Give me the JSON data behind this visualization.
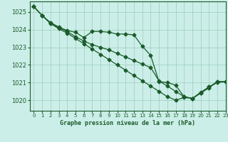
{
  "title": "Graphe pression niveau de la mer (hPa)",
  "bg_color": "#cceee8",
  "grid_color": "#99ccbb",
  "line_color": "#1a5c2a",
  "xlim": [
    -0.5,
    23
  ],
  "ylim": [
    1019.4,
    1025.6
  ],
  "yticks": [
    1020,
    1021,
    1022,
    1023,
    1024,
    1025
  ],
  "xticks": [
    0,
    1,
    2,
    3,
    4,
    5,
    6,
    7,
    8,
    9,
    10,
    11,
    12,
    13,
    14,
    15,
    16,
    17,
    18,
    19,
    20,
    21,
    22,
    23
  ],
  "series1_x": [
    0,
    1,
    2,
    3,
    4,
    5,
    6,
    7,
    8,
    9,
    10,
    11,
    12,
    13,
    14,
    15,
    16,
    17,
    18,
    19,
    20,
    21,
    22,
    23
  ],
  "series1_y": [
    1025.3,
    1024.8,
    1024.4,
    1024.15,
    1023.95,
    1023.85,
    1023.55,
    1023.9,
    1023.9,
    1023.85,
    1023.75,
    1023.75,
    1023.7,
    1023.05,
    1022.55,
    1021.05,
    1021.0,
    1020.85,
    1020.2,
    1020.1,
    1020.4,
    1020.75,
    1021.0,
    1021.05
  ],
  "series2_x": [
    0,
    1,
    2,
    3,
    4,
    5,
    6,
    7,
    8,
    9,
    10,
    11,
    12,
    13,
    14,
    15,
    16,
    17,
    18,
    19,
    20,
    21,
    22,
    23
  ],
  "series2_y": [
    1025.3,
    1024.8,
    1024.35,
    1024.1,
    1023.9,
    1023.6,
    1023.35,
    1023.15,
    1023.0,
    1022.85,
    1022.65,
    1022.45,
    1022.25,
    1022.05,
    1021.85,
    1021.1,
    1020.8,
    1020.5,
    1020.2,
    1020.1,
    1020.4,
    1020.7,
    1021.05,
    1021.05
  ],
  "series3_x": [
    0,
    1,
    2,
    3,
    4,
    5,
    6,
    7,
    8,
    9,
    10,
    11,
    12,
    13,
    14,
    15,
    16,
    17,
    18,
    19,
    20,
    21,
    22,
    23
  ],
  "series3_y": [
    1025.3,
    1024.8,
    1024.35,
    1024.05,
    1023.8,
    1023.5,
    1023.2,
    1022.9,
    1022.6,
    1022.3,
    1022.0,
    1021.7,
    1021.4,
    1021.1,
    1020.8,
    1020.5,
    1020.2,
    1020.0,
    1020.15,
    1020.1,
    1020.45,
    1020.75,
    1021.05,
    1021.05
  ]
}
